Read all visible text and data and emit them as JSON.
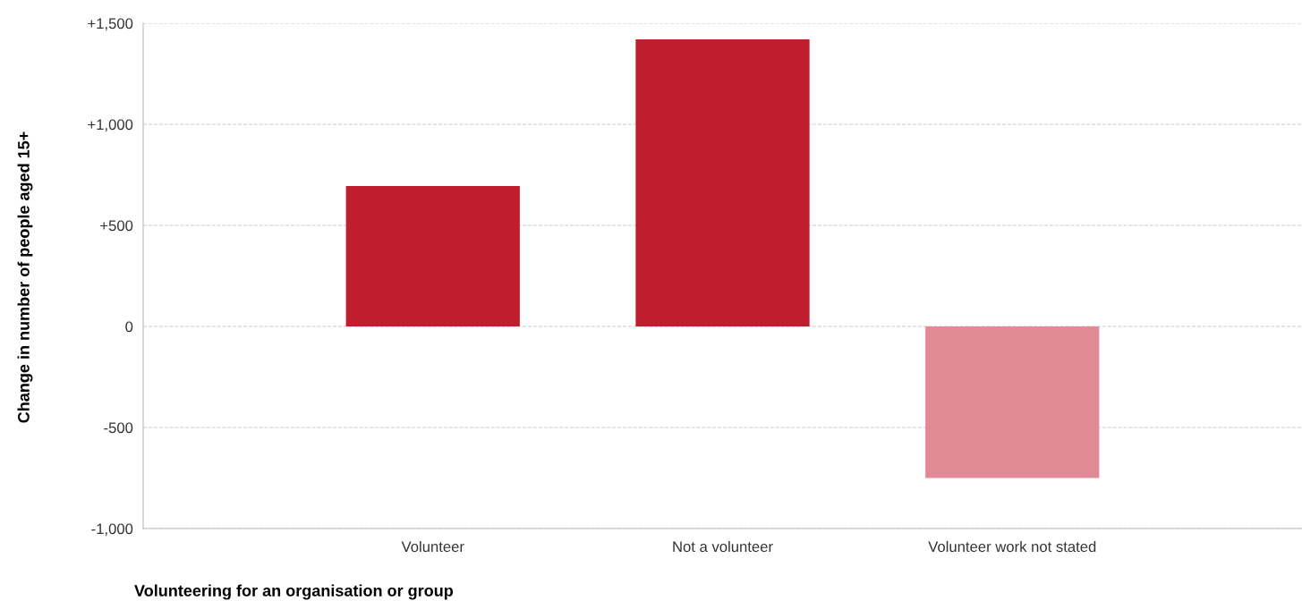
{
  "chart_data": {
    "type": "bar",
    "xlabel": "Volunteering for an organisation or group",
    "ylabel": "Change in number of people aged 15+",
    "categories": [
      "Volunteer",
      "Not a volunteer",
      "Volunteer work not stated"
    ],
    "values": [
      695,
      1420,
      -750
    ],
    "colors": [
      "#be1e2d",
      "#be1e2d",
      "#e08a96"
    ],
    "ylim": [
      -1000,
      1500
    ],
    "yticks": [
      {
        "value": -1000,
        "label": "-1,000"
      },
      -500,
      0,
      {
        "value": 500,
        "label": "+500"
      },
      {
        "value": 1000,
        "label": "+1,000"
      },
      {
        "value": 1500,
        "label": "+1,500"
      }
    ],
    "grid": "y",
    "legend": false
  }
}
